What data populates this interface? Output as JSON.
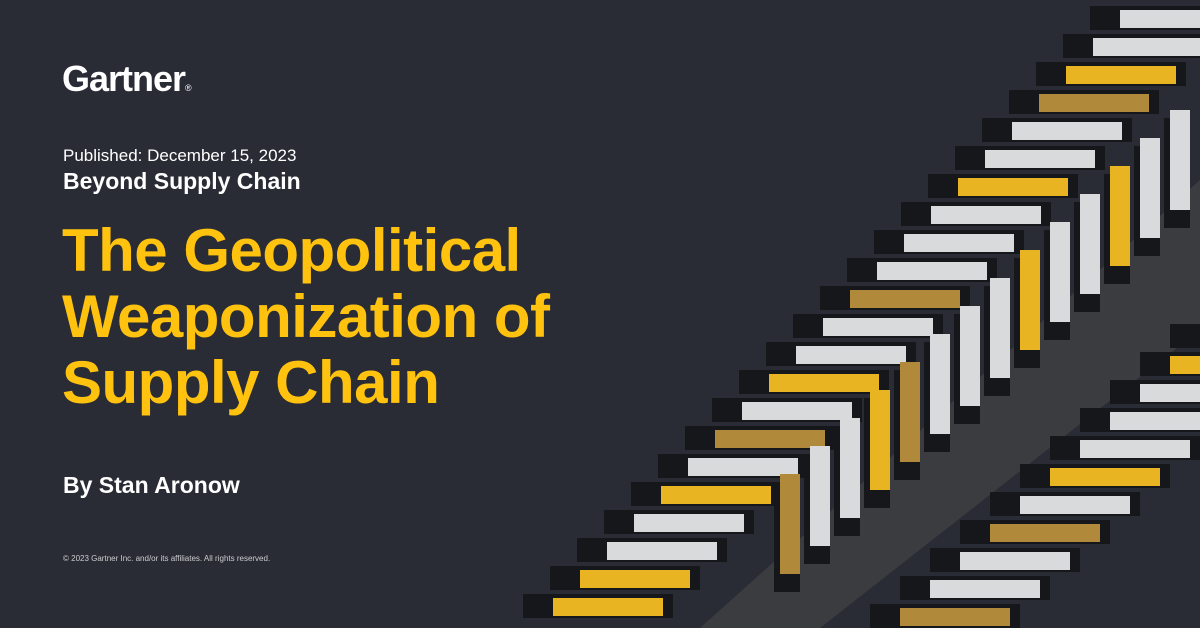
{
  "brand": {
    "logo_text": "Gartner",
    "registered_mark": "®"
  },
  "published": "Published: December 15, 2023",
  "series": "Beyond Supply Chain",
  "title_lines": [
    "The Geopolitical",
    "Weaponization of",
    "Supply Chain"
  ],
  "author": "By Stan Aronow",
  "copyright": "© 2023 Gartner Inc. and/or its affiliates. All rights reserved.",
  "colors": {
    "background": "#292c35",
    "accent": "#ffc20e",
    "text": "#ffffff"
  },
  "image": {
    "subject": "aerial-shipping-containers-icon"
  }
}
